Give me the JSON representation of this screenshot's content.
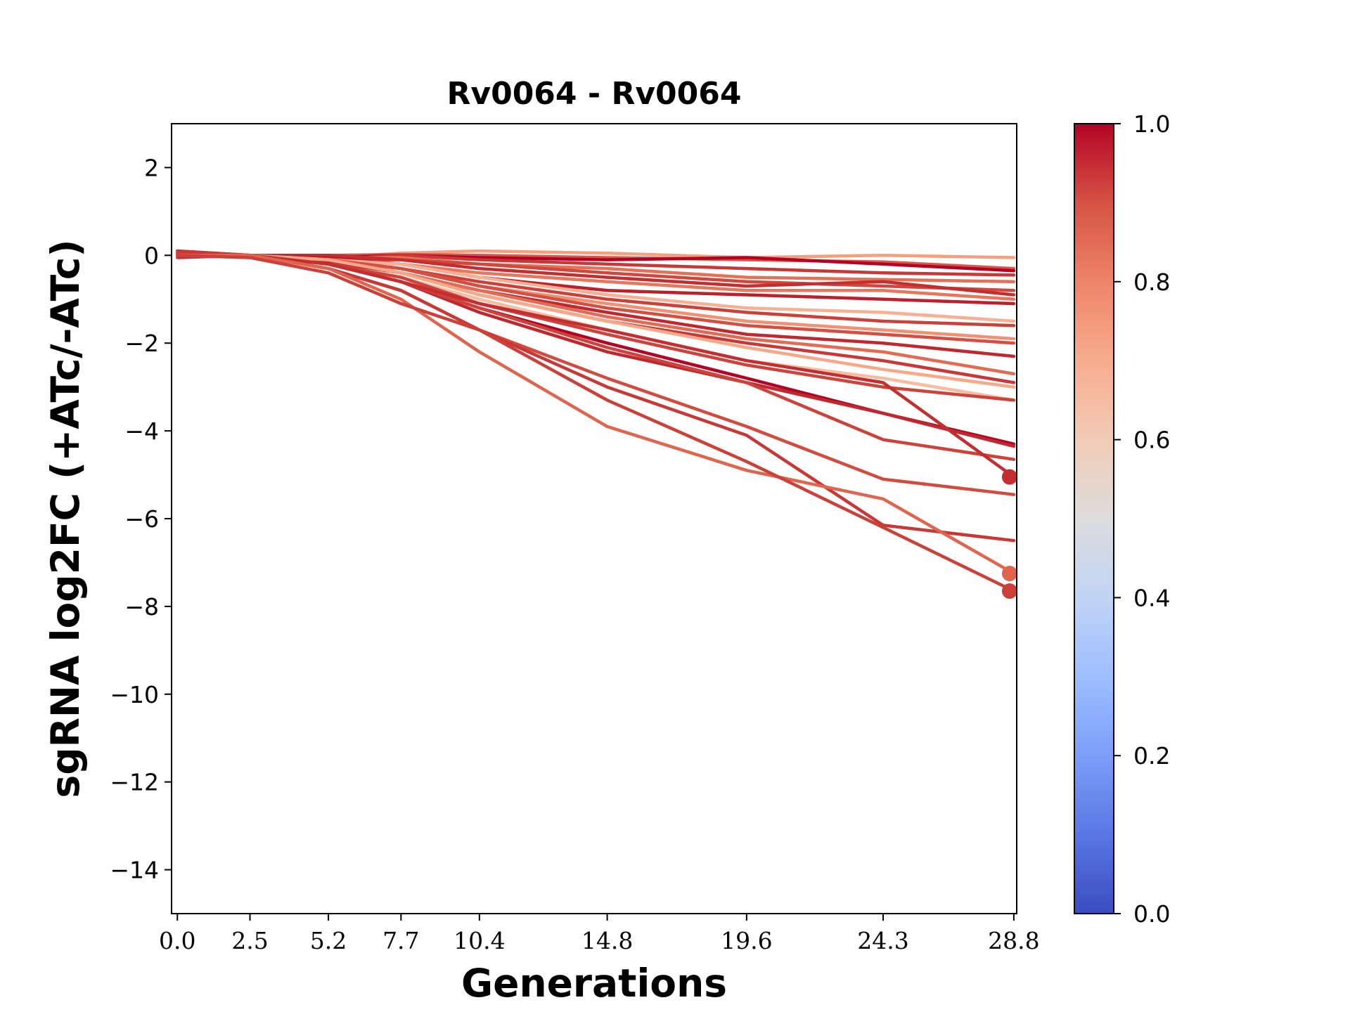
{
  "chart_data": {
    "type": "line",
    "title": "Rv0064 - Rv0064",
    "xlabel": "Generations",
    "ylabel": "sgRNA log2FC (+ATc/-ATc)",
    "x": [
      0.0,
      2.5,
      5.2,
      7.7,
      10.4,
      14.8,
      19.6,
      24.3,
      28.8
    ],
    "x_tick_labels": [
      "0.0",
      "2.5",
      "5.2",
      "7.7",
      "10.4",
      "14.8",
      "19.6",
      "24.3",
      "28.8"
    ],
    "xlim": [
      -0.2,
      28.9
    ],
    "ylim": [
      -15,
      3
    ],
    "y_ticks": [
      2,
      0,
      -2,
      -4,
      -6,
      -8,
      -10,
      -12,
      -14
    ],
    "y_tick_labels": [
      "2",
      "0",
      "−2",
      "−4",
      "−6",
      "−8",
      "−10",
      "−12",
      "−14"
    ],
    "grid": false,
    "colormap": "coolwarm",
    "colorbar": {
      "range": [
        0.0,
        1.0
      ],
      "ticks": [
        0.0,
        0.2,
        0.4,
        0.6,
        0.8,
        1.0
      ],
      "tick_labels": [
        "0.0",
        "0.2",
        "0.4",
        "0.6",
        "0.8",
        "1.0"
      ],
      "stops": [
        "#3b4cc0",
        "#5977e3",
        "#7b9ff9",
        "#9ebeff",
        "#c0d4f5",
        "#dddcdc",
        "#f2cbb7",
        "#f7ac8e",
        "#ee8468",
        "#d65244",
        "#b40426"
      ]
    },
    "series": [
      {
        "values": [
          0.0,
          0.0,
          -0.05,
          0.05,
          0.1,
          0.05,
          -0.05,
          0.0,
          -0.05
        ],
        "color": "#f4a07f",
        "endpoint": false
      },
      {
        "values": [
          0.0,
          -0.02,
          0.0,
          0.02,
          0.0,
          -0.05,
          -0.1,
          -0.15,
          -0.3
        ],
        "color": "#d9574a",
        "endpoint": false
      },
      {
        "values": [
          0.05,
          0.0,
          -0.05,
          0.0,
          -0.05,
          -0.1,
          -0.05,
          -0.2,
          -0.35
        ],
        "color": "#b40426",
        "endpoint": false
      },
      {
        "values": [
          0.0,
          0.0,
          -0.1,
          0.0,
          -0.1,
          -0.2,
          -0.3,
          -0.4,
          -0.45
        ],
        "color": "#c83836",
        "endpoint": false
      },
      {
        "values": [
          0.1,
          0.0,
          -0.05,
          -0.05,
          -0.2,
          -0.3,
          -0.5,
          -0.55,
          -0.6
        ],
        "color": "#e57058",
        "endpoint": false
      },
      {
        "values": [
          0.0,
          0.0,
          -0.1,
          -0.1,
          -0.2,
          -0.4,
          -0.6,
          -0.7,
          -0.8
        ],
        "color": "#d0473d",
        "endpoint": false
      },
      {
        "values": [
          -0.05,
          0.0,
          0.0,
          -0.1,
          -0.3,
          -0.5,
          -0.7,
          -0.6,
          -0.9
        ],
        "color": "#c32e31",
        "endpoint": false
      },
      {
        "values": [
          0.0,
          0.0,
          -0.1,
          -0.2,
          -0.4,
          -0.6,
          -0.8,
          -0.8,
          -1.0
        ],
        "color": "#e8765c",
        "endpoint": false
      },
      {
        "values": [
          0.05,
          0.0,
          -0.05,
          -0.2,
          -0.5,
          -0.8,
          -0.9,
          -1.0,
          -1.1
        ],
        "color": "#bd1f2d",
        "endpoint": false
      },
      {
        "values": [
          0.0,
          -0.05,
          -0.1,
          -0.2,
          -0.5,
          -0.9,
          -1.2,
          -1.3,
          -1.5
        ],
        "color": "#f7b093",
        "endpoint": false
      },
      {
        "values": [
          0.0,
          0.0,
          -0.1,
          -0.3,
          -0.6,
          -1.0,
          -1.3,
          -1.5,
          -1.6
        ],
        "color": "#cc403a",
        "endpoint": false
      },
      {
        "values": [
          0.1,
          0.0,
          -0.1,
          -0.3,
          -0.7,
          -1.1,
          -1.5,
          -1.7,
          -1.9
        ],
        "color": "#f29072",
        "endpoint": false
      },
      {
        "values": [
          0.0,
          0.0,
          -0.1,
          -0.3,
          -0.7,
          -1.2,
          -1.6,
          -1.8,
          -2.0
        ],
        "color": "#d44e41",
        "endpoint": false
      },
      {
        "values": [
          0.0,
          -0.05,
          -0.15,
          -0.4,
          -0.8,
          -1.3,
          -1.8,
          -2.0,
          -2.3
        ],
        "color": "#c0282f",
        "endpoint": false
      },
      {
        "values": [
          0.0,
          0.0,
          -0.1,
          -0.4,
          -0.8,
          -1.4,
          -1.9,
          -2.2,
          -2.7
        ],
        "color": "#e36b54",
        "endpoint": false
      },
      {
        "values": [
          0.05,
          0.0,
          -0.1,
          -0.4,
          -0.9,
          -1.5,
          -2.0,
          -2.4,
          -2.9
        ],
        "color": "#c83836",
        "endpoint": false
      },
      {
        "values": [
          0.0,
          0.0,
          -0.1,
          -0.4,
          -0.9,
          -1.5,
          -2.1,
          -2.6,
          -3.0
        ],
        "color": "#f7a889",
        "endpoint": false
      },
      {
        "values": [
          0.0,
          0.0,
          -0.2,
          -0.5,
          -1.0,
          -1.7,
          -2.4,
          -2.8,
          -3.3
        ],
        "color": "#f6bda2",
        "endpoint": false
      },
      {
        "values": [
          0.1,
          0.0,
          -0.2,
          -0.5,
          -1.1,
          -1.8,
          -2.5,
          -3.0,
          -3.3
        ],
        "color": "#cd423b",
        "endpoint": false
      },
      {
        "values": [
          0.0,
          0.0,
          -0.2,
          -0.6,
          -1.2,
          -2.0,
          -2.8,
          -3.6,
          -4.3
        ],
        "color": "#b40426",
        "endpoint": false
      },
      {
        "values": [
          0.0,
          0.0,
          -0.2,
          -0.6,
          -1.3,
          -2.2,
          -2.9,
          -3.6,
          -4.35
        ],
        "color": "#c0282f",
        "endpoint": false
      },
      {
        "values": [
          0.05,
          0.0,
          -0.2,
          -0.6,
          -1.2,
          -2.1,
          -2.9,
          -4.2,
          -4.65
        ],
        "color": "#cd423b",
        "endpoint": false
      },
      {
        "values": [
          0.0,
          0.0,
          -0.2,
          -0.6,
          -1.1,
          -1.7,
          -2.4,
          -2.9,
          -5.05
        ],
        "color": "#c32e31",
        "endpoint": true
      },
      {
        "values": [
          0.0,
          0.0,
          -0.3,
          -0.8,
          -1.7,
          -2.8,
          -3.9,
          -5.1,
          -5.45
        ],
        "color": "#d24b40",
        "endpoint": false
      },
      {
        "values": [
          0.1,
          0.0,
          -0.3,
          -0.8,
          -1.7,
          -3.0,
          -4.1,
          -6.15,
          -6.5
        ],
        "color": "#c83836",
        "endpoint": false
      },
      {
        "values": [
          0.0,
          0.0,
          -0.3,
          -1.0,
          -2.2,
          -3.9,
          -4.9,
          -5.55,
          -7.25
        ],
        "color": "#e0654f",
        "endpoint": true
      },
      {
        "values": [
          0.0,
          -0.05,
          -0.4,
          -1.1,
          -1.7,
          -3.3,
          -4.7,
          -6.2,
          -7.65
        ],
        "color": "#cc403a",
        "endpoint": true
      }
    ]
  }
}
